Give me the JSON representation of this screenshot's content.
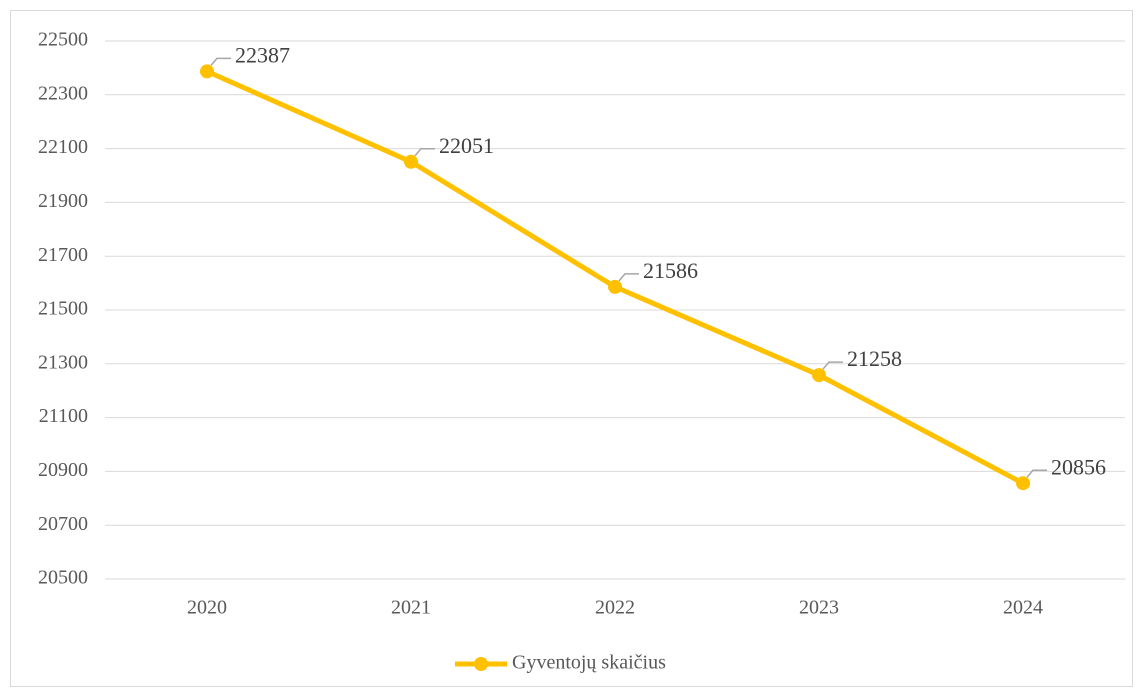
{
  "chart_data": {
    "type": "line",
    "categories": [
      "2020",
      "2021",
      "2022",
      "2023",
      "2024"
    ],
    "series": [
      {
        "name": "Gyventojų skaičius",
        "color": "#ffc000",
        "values": [
          22387,
          22051,
          21586,
          21258,
          20856
        ]
      }
    ],
    "ylim": [
      20500,
      22500
    ],
    "yticks": [
      20500,
      20700,
      20900,
      21100,
      21300,
      21500,
      21700,
      21900,
      22100,
      22300,
      22500
    ],
    "grid": true,
    "legend": "bottom",
    "data_labels": true
  }
}
